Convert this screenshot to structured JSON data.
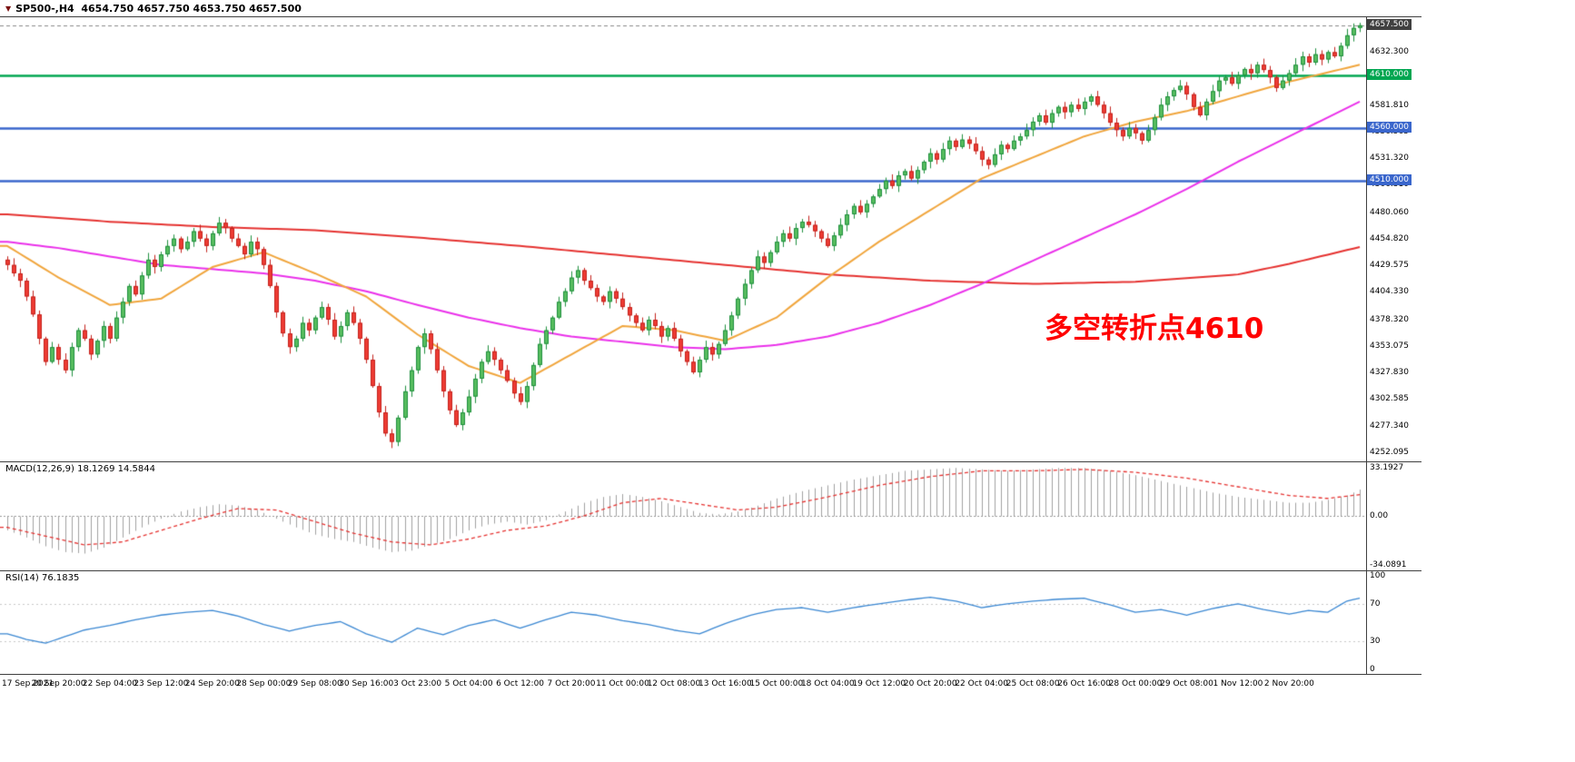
{
  "window": {
    "icon": "▼",
    "title": "SP500-,H4  4654.750 4657.750 4653.750 4657.500",
    "symbol": "SP500-",
    "timeframe": "H4"
  },
  "colors": {
    "up_fill": "#57bd5e",
    "up_border": "#1e8f3e",
    "down_fill": "#ee3b33",
    "down_border": "#c3221c",
    "ma_red": "#e53230",
    "ma_magenta": "#ea30ea",
    "ma_orange": "#f0a53c",
    "hline_green": "#00a651",
    "hline_blue": "#3a66cc",
    "macd_hist": "#a0a0a0",
    "macd_signal": "#e53230",
    "rsi_line": "#3a87d2",
    "annotation_red": "#ff0000",
    "current_badge_bg": "#404040",
    "axis_text": "#000000",
    "separator": "#3f3f3f"
  },
  "chart_data": [
    {
      "type": "candlestick",
      "symbol": "SP500-",
      "timeframe": "H4",
      "ohlc": {
        "open": 4654.75,
        "high": 4657.75,
        "low": 4653.75,
        "close": 4657.5
      },
      "first_open": 4435,
      "closes": [
        4430,
        4422,
        4415,
        4400,
        4383,
        4360,
        4338,
        4352,
        4340,
        4330,
        4352,
        4368,
        4360,
        4345,
        4358,
        4372,
        4360,
        4380,
        4395,
        4410,
        4402,
        4420,
        4435,
        4428,
        4440,
        4448,
        4455,
        4445,
        4452,
        4462,
        4455,
        4448,
        4460,
        4470,
        4465,
        4455,
        4448,
        4440,
        4452,
        4445,
        4430,
        4410,
        4385,
        4365,
        4352,
        4360,
        4375,
        4368,
        4380,
        4390,
        4378,
        4362,
        4372,
        4385,
        4375,
        4360,
        4340,
        4315,
        4290,
        4270,
        4262,
        4285,
        4310,
        4330,
        4352,
        4365,
        4350,
        4330,
        4310,
        4292,
        4278,
        4290,
        4305,
        4322,
        4338,
        4348,
        4340,
        4330,
        4320,
        4308,
        4300,
        4315,
        4335,
        4355,
        4368,
        4380,
        4395,
        4405,
        4418,
        4425,
        4415,
        4408,
        4400,
        4395,
        4405,
        4398,
        4390,
        4382,
        4375,
        4368,
        4378,
        4372,
        4362,
        4370,
        4360,
        4348,
        4338,
        4328,
        4340,
        4352,
        4345,
        4355,
        4368,
        4382,
        4398,
        4412,
        4425,
        4438,
        4432,
        4442,
        4452,
        4460,
        4455,
        4465,
        4471,
        4468,
        4462,
        4455,
        4448,
        4458,
        4468,
        4478,
        4486,
        4480,
        4488,
        4495,
        4502,
        4510,
        4505,
        4515,
        4519,
        4512,
        4520,
        4528,
        4536,
        4530,
        4540,
        4548,
        4542,
        4549,
        4545,
        4538,
        4530,
        4525,
        4535,
        4544,
        4540,
        4548,
        4552,
        4558,
        4566,
        4572,
        4565,
        4574,
        4580,
        4575,
        4582,
        4578,
        4585,
        4590,
        4582,
        4574,
        4565,
        4558,
        4552,
        4560,
        4555,
        4548,
        4558,
        4570,
        4582,
        4590,
        4596,
        4600,
        4592,
        4580,
        4572,
        4585,
        4595,
        4605,
        4608,
        4602,
        4610,
        4616,
        4612,
        4620,
        4615,
        4608,
        4598,
        4605,
        4612,
        4620,
        4628,
        4622,
        4630,
        4625,
        4632,
        4628,
        4638,
        4648,
        4655,
        4657.5
      ],
      "bars_per_label": 8,
      "x_labels": [
        "17 Sep 2021",
        "20 Sep 20:00",
        "22 Sep 04:00",
        "23 Sep 12:00",
        "24 Sep 20:00",
        "28 Sep 00:00",
        "29 Sep 08:00",
        "30 Sep 16:00",
        "3 Oct 23:00",
        "5 Oct 04:00",
        "6 Oct 12:00",
        "7 Oct 20:00",
        "11 Oct 00:00",
        "12 Oct 08:00",
        "13 Oct 16:00",
        "15 Oct 00:00",
        "18 Oct 04:00",
        "19 Oct 12:00",
        "20 Oct 20:00",
        "22 Oct 04:00",
        "25 Oct 08:00",
        "26 Oct 16:00",
        "28 Oct 00:00",
        "29 Oct 08:00",
        "1 Nov 12:00",
        "2 Nov 20:00"
      ],
      "y_ticks": [
        4252.095,
        4277.34,
        4302.585,
        4327.83,
        4353.075,
        4378.32,
        4404.33,
        4429.575,
        4454.82,
        4480.06,
        4506.31,
        4531.32,
        4556.565,
        4581.81,
        4632.3
      ],
      "y_range": [
        4243.5,
        4665.1
      ],
      "hlines": [
        {
          "price": 4610.0,
          "label": "4610.000",
          "color_key": "hline_green"
        },
        {
          "price": 4560.0,
          "label": "4560.000",
          "color_key": "hline_blue"
        },
        {
          "price": 4510.0,
          "label": "4510.000",
          "color_key": "hline_blue"
        }
      ],
      "current_price": {
        "value": 4657.5,
        "label": "4657.500"
      },
      "annotation": {
        "text": "多空转折点4610"
      },
      "ma_lines": [
        {
          "name": "ma-red-slow",
          "color_key": "ma_red",
          "anchors": [
            [
              0,
              4478
            ],
            [
              16,
              4471
            ],
            [
              32,
              4466
            ],
            [
              48,
              4463
            ],
            [
              64,
              4456
            ],
            [
              80,
              4448
            ],
            [
              96,
              4439
            ],
            [
              112,
              4430
            ],
            [
              128,
              4421
            ],
            [
              144,
              4415
            ],
            [
              160,
              4412
            ],
            [
              176,
              4414
            ],
            [
              192,
              4421
            ],
            [
              200,
              4431
            ],
            [
              211,
              4447
            ]
          ]
        },
        {
          "name": "ma-magenta-medium",
          "color_key": "ma_magenta",
          "anchors": [
            [
              0,
              4452
            ],
            [
              8,
              4446
            ],
            [
              16,
              4438
            ],
            [
              24,
              4430
            ],
            [
              32,
              4426
            ],
            [
              40,
              4422
            ],
            [
              48,
              4415
            ],
            [
              56,
              4405
            ],
            [
              64,
              4392
            ],
            [
              72,
              4380
            ],
            [
              80,
              4370
            ],
            [
              88,
              4362
            ],
            [
              96,
              4357
            ],
            [
              104,
              4352
            ],
            [
              112,
              4350
            ],
            [
              120,
              4354
            ],
            [
              128,
              4362
            ],
            [
              136,
              4375
            ],
            [
              144,
              4392
            ],
            [
              152,
              4412
            ],
            [
              160,
              4434
            ],
            [
              168,
              4456
            ],
            [
              176,
              4478
            ],
            [
              184,
              4502
            ],
            [
              192,
              4528
            ],
            [
              200,
              4552
            ],
            [
              206,
              4570
            ],
            [
              211,
              4585
            ]
          ]
        },
        {
          "name": "ma-orange-fast",
          "color_key": "ma_orange",
          "anchors": [
            [
              0,
              4448
            ],
            [
              8,
              4418
            ],
            [
              16,
              4392
            ],
            [
              24,
              4398
            ],
            [
              32,
              4428
            ],
            [
              40,
              4442
            ],
            [
              48,
              4422
            ],
            [
              56,
              4400
            ],
            [
              64,
              4364
            ],
            [
              72,
              4334
            ],
            [
              80,
              4318
            ],
            [
              88,
              4345
            ],
            [
              96,
              4372
            ],
            [
              104,
              4368
            ],
            [
              112,
              4358
            ],
            [
              120,
              4380
            ],
            [
              128,
              4418
            ],
            [
              136,
              4452
            ],
            [
              144,
              4482
            ],
            [
              152,
              4512
            ],
            [
              160,
              4532
            ],
            [
              168,
              4552
            ],
            [
              176,
              4566
            ],
            [
              184,
              4576
            ],
            [
              192,
              4590
            ],
            [
              200,
              4604
            ],
            [
              211,
              4620
            ]
          ]
        }
      ]
    },
    {
      "type": "macd",
      "label": "MACD(12,26,9) 18.1269 14.5844",
      "params": "12,26,9",
      "macd_value": 18.1269,
      "signal_value": 14.5844,
      "y_ticks": [
        {
          "v": 33.1927,
          "label": "33.1927"
        },
        {
          "v": 0,
          "label": "0.00"
        },
        {
          "v": -34.0891,
          "label": "-34.0891"
        }
      ],
      "y_range": [
        -37.6,
        36.9
      ],
      "histogram_anchors": [
        [
          0,
          -10
        ],
        [
          3,
          -15
        ],
        [
          6,
          -21
        ],
        [
          9,
          -25
        ],
        [
          12,
          -26
        ],
        [
          15,
          -22
        ],
        [
          18,
          -15
        ],
        [
          21,
          -8
        ],
        [
          24,
          -2
        ],
        [
          27,
          3
        ],
        [
          30,
          6
        ],
        [
          33,
          8
        ],
        [
          36,
          7
        ],
        [
          39,
          4
        ],
        [
          42,
          -2
        ],
        [
          45,
          -8
        ],
        [
          48,
          -13
        ],
        [
          51,
          -16
        ],
        [
          54,
          -18
        ],
        [
          57,
          -22
        ],
        [
          60,
          -25
        ],
        [
          63,
          -24
        ],
        [
          66,
          -20
        ],
        [
          69,
          -16
        ],
        [
          72,
          -10
        ],
        [
          75,
          -6
        ],
        [
          78,
          -4
        ],
        [
          81,
          -6
        ],
        [
          84,
          -3
        ],
        [
          87,
          3
        ],
        [
          90,
          9
        ],
        [
          93,
          13
        ],
        [
          96,
          15
        ],
        [
          99,
          13
        ],
        [
          102,
          10
        ],
        [
          105,
          6
        ],
        [
          108,
          2
        ],
        [
          111,
          1
        ],
        [
          114,
          3
        ],
        [
          117,
          7
        ],
        [
          120,
          12
        ],
        [
          124,
          17
        ],
        [
          128,
          21
        ],
        [
          132,
          25
        ],
        [
          136,
          28
        ],
        [
          140,
          31
        ],
        [
          144,
          32
        ],
        [
          148,
          33
        ],
        [
          152,
          32
        ],
        [
          156,
          31
        ],
        [
          160,
          32
        ],
        [
          164,
          33
        ],
        [
          168,
          33
        ],
        [
          172,
          31
        ],
        [
          176,
          28
        ],
        [
          180,
          24
        ],
        [
          184,
          20
        ],
        [
          188,
          16
        ],
        [
          192,
          13
        ],
        [
          196,
          11
        ],
        [
          200,
          9
        ],
        [
          203,
          9
        ],
        [
          206,
          11
        ],
        [
          209,
          14
        ],
        [
          211,
          18.1
        ]
      ],
      "signal_anchors": [
        [
          0,
          -8
        ],
        [
          6,
          -14
        ],
        [
          12,
          -20
        ],
        [
          18,
          -18
        ],
        [
          24,
          -10
        ],
        [
          30,
          -2
        ],
        [
          36,
          5
        ],
        [
          42,
          4
        ],
        [
          48,
          -4
        ],
        [
          54,
          -12
        ],
        [
          60,
          -18
        ],
        [
          66,
          -20
        ],
        [
          72,
          -16
        ],
        [
          78,
          -10
        ],
        [
          84,
          -7
        ],
        [
          90,
          0
        ],
        [
          96,
          9
        ],
        [
          102,
          12
        ],
        [
          108,
          8
        ],
        [
          114,
          4
        ],
        [
          120,
          6
        ],
        [
          128,
          13
        ],
        [
          136,
          21
        ],
        [
          144,
          27
        ],
        [
          152,
          31
        ],
        [
          160,
          31
        ],
        [
          168,
          32
        ],
        [
          176,
          30
        ],
        [
          184,
          26
        ],
        [
          192,
          20
        ],
        [
          200,
          14
        ],
        [
          206,
          12
        ],
        [
          211,
          14.6
        ]
      ]
    },
    {
      "type": "rsi",
      "label": "RSI(14) 76.1835",
      "period": 14,
      "value": 76.1835,
      "y_ticks": [
        {
          "v": 100,
          "label": "100"
        },
        {
          "v": 70,
          "label": "70"
        },
        {
          "v": 30,
          "label": "30"
        },
        {
          "v": 0,
          "label": "0"
        }
      ],
      "levels": [
        70,
        30
      ],
      "y_range": [
        0,
        100
      ],
      "line_anchors": [
        [
          0,
          38
        ],
        [
          3,
          32
        ],
        [
          6,
          28
        ],
        [
          9,
          35
        ],
        [
          12,
          42
        ],
        [
          16,
          47
        ],
        [
          20,
          53
        ],
        [
          24,
          58
        ],
        [
          28,
          61
        ],
        [
          32,
          63
        ],
        [
          36,
          57
        ],
        [
          40,
          48
        ],
        [
          44,
          41
        ],
        [
          48,
          47
        ],
        [
          52,
          51
        ],
        [
          56,
          38
        ],
        [
          60,
          29
        ],
        [
          64,
          44
        ],
        [
          68,
          37
        ],
        [
          72,
          47
        ],
        [
          76,
          53
        ],
        [
          80,
          44
        ],
        [
          84,
          53
        ],
        [
          88,
          61
        ],
        [
          92,
          58
        ],
        [
          96,
          52
        ],
        [
          100,
          48
        ],
        [
          104,
          42
        ],
        [
          108,
          38
        ],
        [
          112,
          49
        ],
        [
          116,
          58
        ],
        [
          120,
          64
        ],
        [
          124,
          66
        ],
        [
          128,
          61
        ],
        [
          132,
          66
        ],
        [
          136,
          70
        ],
        [
          140,
          74
        ],
        [
          144,
          77
        ],
        [
          148,
          73
        ],
        [
          152,
          66
        ],
        [
          156,
          70
        ],
        [
          160,
          73
        ],
        [
          164,
          75
        ],
        [
          168,
          76
        ],
        [
          172,
          69
        ],
        [
          176,
          61
        ],
        [
          180,
          64
        ],
        [
          184,
          58
        ],
        [
          188,
          65
        ],
        [
          192,
          70
        ],
        [
          196,
          64
        ],
        [
          200,
          59
        ],
        [
          203,
          63
        ],
        [
          206,
          61
        ],
        [
          209,
          73
        ],
        [
          211,
          76.2
        ]
      ]
    }
  ]
}
